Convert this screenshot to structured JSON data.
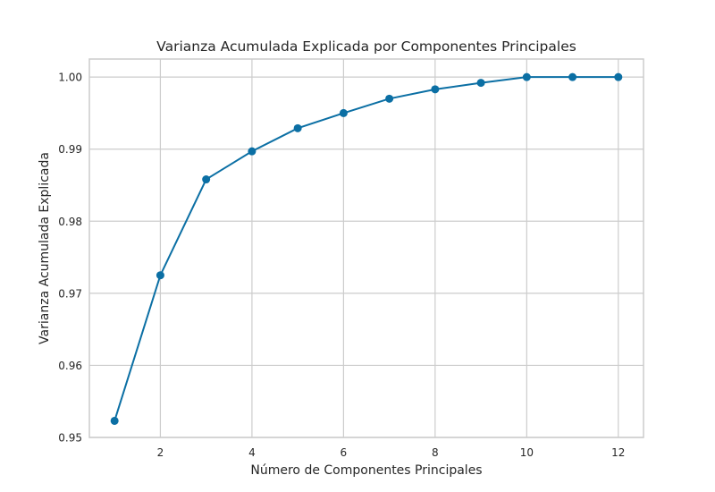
{
  "chart_data": {
    "type": "line",
    "title": "Varianza Acumulada Explicada por Componentes Principales",
    "xlabel": "Número de Componentes Principales",
    "ylabel": "Varianza Acumulada Explicada",
    "xlim": [
      0.45,
      12.55
    ],
    "ylim": [
      0.95,
      1.0025
    ],
    "x_ticks": [
      2,
      4,
      6,
      8,
      10,
      12
    ],
    "x_tick_labels": [
      "2",
      "4",
      "6",
      "8",
      "10",
      "12"
    ],
    "y_ticks": [
      0.95,
      0.96,
      0.97,
      0.98,
      0.99,
      1.0
    ],
    "y_tick_labels": [
      "0.95",
      "0.96",
      "0.97",
      "0.98",
      "0.99",
      "1.00"
    ],
    "grid": true,
    "markers": true,
    "colors": {
      "series": "#0b6fa4",
      "grid": "#cccccc",
      "text": "#262626"
    },
    "x": [
      1,
      2,
      3,
      4,
      5,
      6,
      7,
      8,
      9,
      10,
      11,
      12
    ],
    "series": [
      {
        "values": [
          0.9523,
          0.9725,
          0.9858,
          0.9897,
          0.9929,
          0.995,
          0.997,
          0.9983,
          0.9992,
          1.0,
          1.0,
          1.0
        ]
      }
    ]
  }
}
